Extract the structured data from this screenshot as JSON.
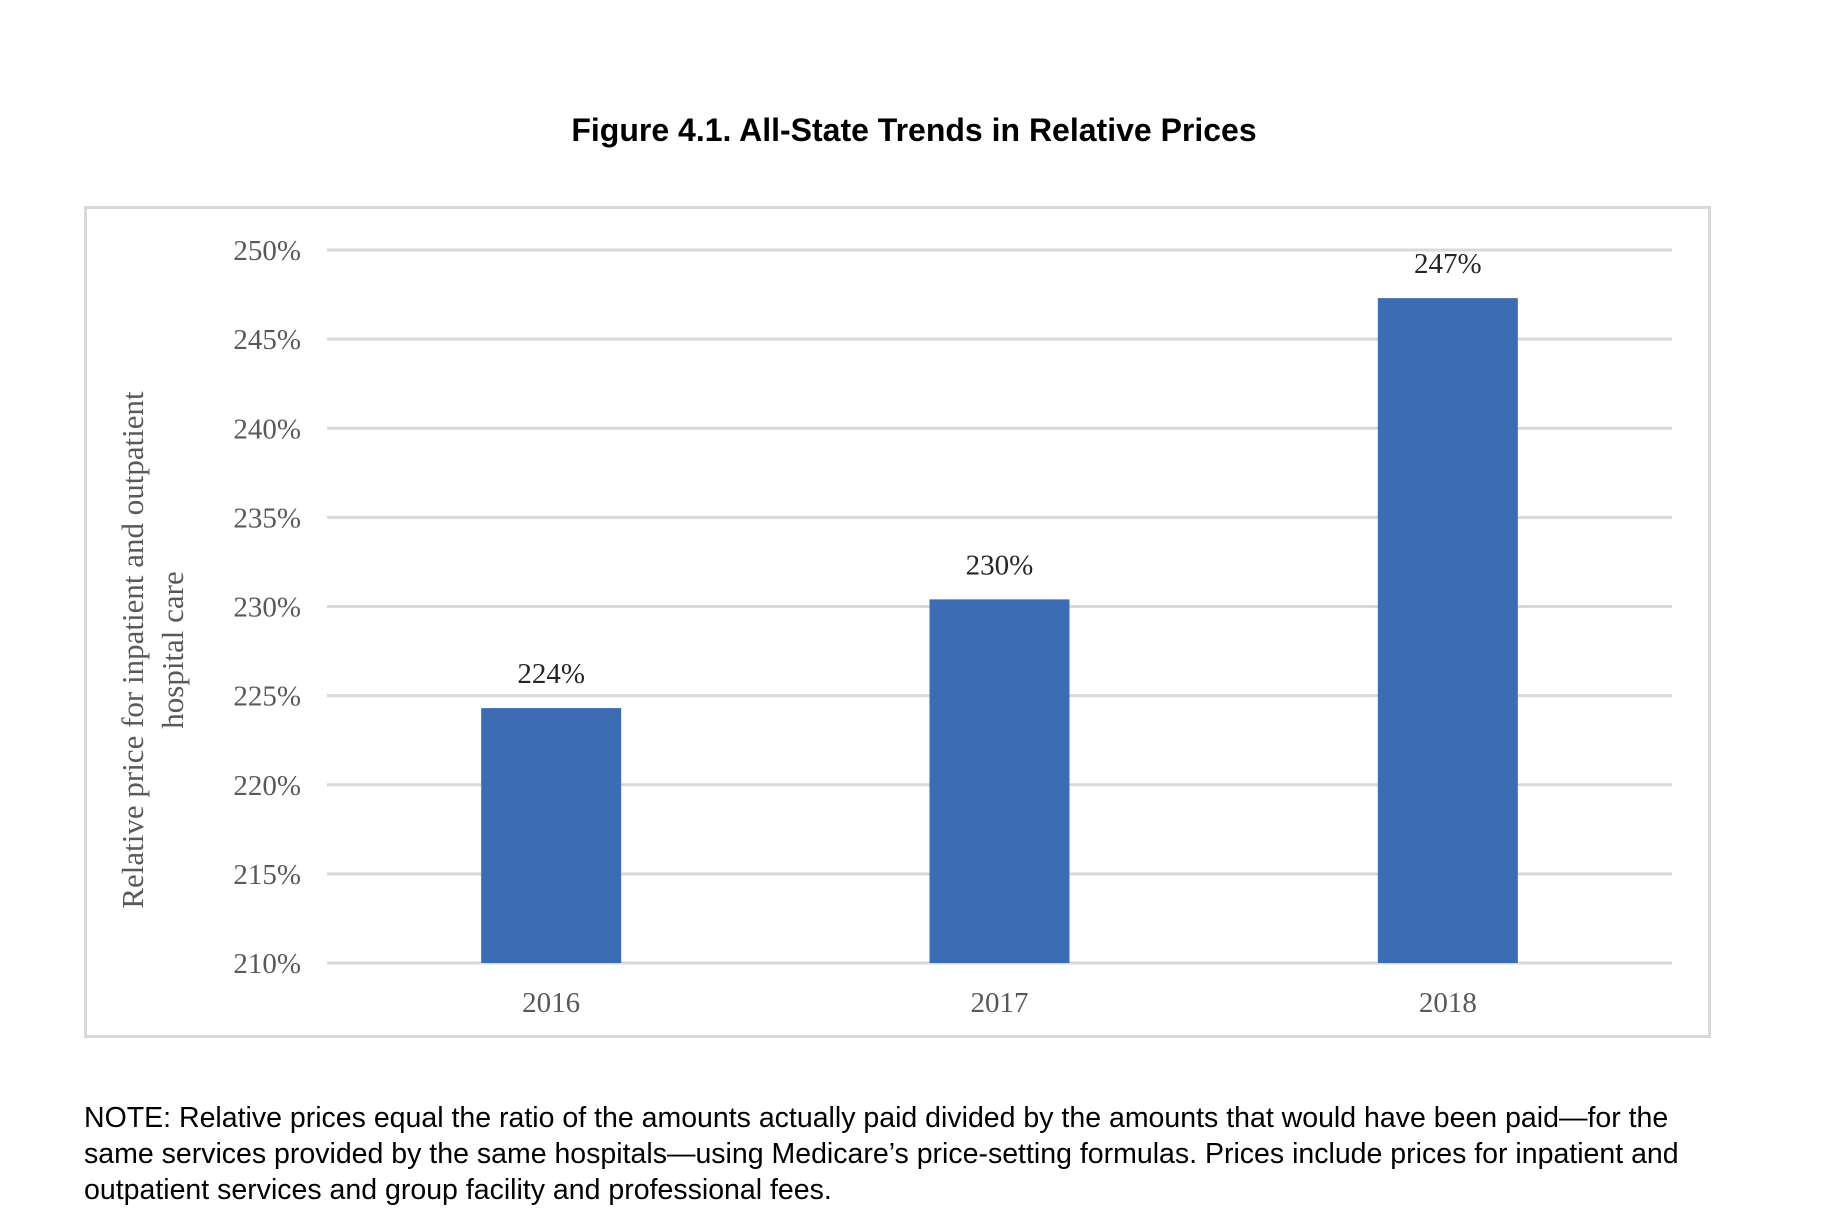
{
  "title": "Figure 4.1. All-State Trends in Relative Prices",
  "note": "NOTE: Relative prices equal the ratio of the amounts actually paid divided by the amounts that would have been paid—for the same services provided by the same hospitals—using Medicare’s price-setting formulas. Prices include prices for inpatient and outpatient services and group facility and professional fees.",
  "colors": {
    "bar": "#3d6cb5",
    "grid": "#d9d9d9",
    "frame": "#d9d9d9",
    "axis_text": "#595959",
    "label_text": "#262626"
  },
  "chart_data": {
    "type": "bar",
    "title": "Figure 4.1. All-State Trends in Relative Prices",
    "xlabel": "",
    "ylabel": "Relative price for inpatient and outpatient hospital care",
    "ylabel_lines": [
      "Relative price for inpatient and outpatient",
      "hospital care"
    ],
    "categories": [
      "2016",
      "2017",
      "2018"
    ],
    "values": [
      224.3,
      230.4,
      247.3
    ],
    "data_labels": [
      "224%",
      "230%",
      "247%"
    ],
    "ylim": [
      210,
      250
    ],
    "yticks": [
      210,
      215,
      220,
      225,
      230,
      235,
      240,
      245,
      250
    ],
    "ytick_labels": [
      "210%",
      "215%",
      "220%",
      "225%",
      "230%",
      "235%",
      "240%",
      "245%",
      "250%"
    ],
    "grid": true,
    "legend": "none"
  }
}
